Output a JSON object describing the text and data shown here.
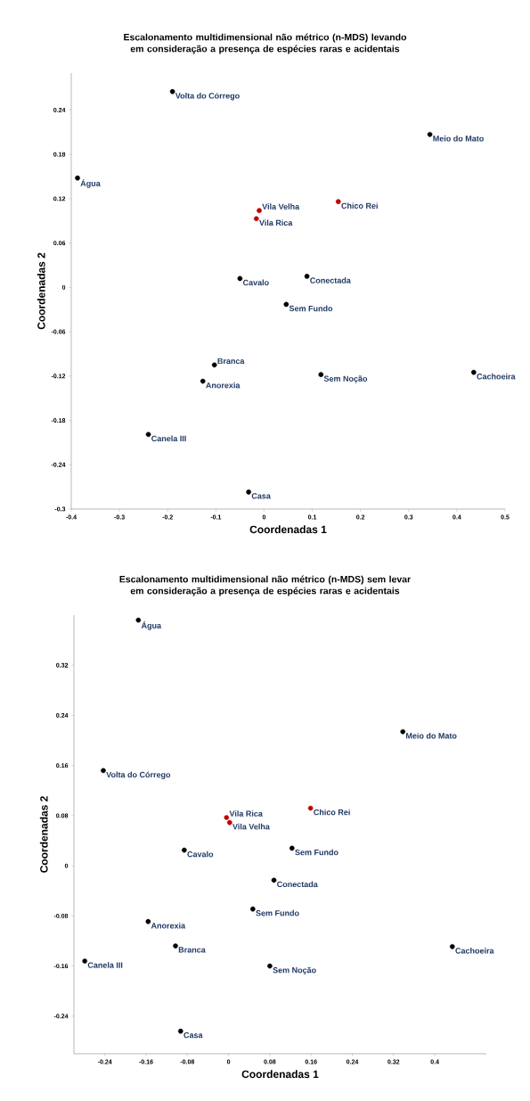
{
  "chart_data": [
    {
      "type": "scatter",
      "title": "Escalonamento multidimensional não métrico (n-MDS) levando em consideração a presença de espécies raras e acidentais",
      "xlabel": "Coordenadas 1",
      "ylabel": "Coordenadas 2",
      "xlim": [
        -0.4,
        0.5
      ],
      "ylim": [
        -0.3,
        0.29
      ],
      "xticks": [
        -0.4,
        -0.3,
        -0.2,
        -0.1,
        0,
        0.1,
        0.2,
        0.3,
        0.4,
        0.5
      ],
      "yticks": [
        -0.3,
        -0.24,
        -0.18,
        -0.12,
        -0.06,
        0,
        0.06,
        0.12,
        0.18,
        0.24
      ],
      "marker": "circle",
      "series": [
        {
          "color": "#000000",
          "x": [
            -0.19,
            0.344,
            -0.387,
            -0.05,
            0.089,
            0.046,
            -0.103,
            -0.127,
            0.118,
            0.435,
            -0.24,
            -0.032
          ],
          "values": [
            0.265,
            0.207,
            0.148,
            0.012,
            0.015,
            -0.023,
            -0.105,
            -0.127,
            -0.118,
            -0.115,
            -0.199,
            -0.277
          ]
        },
        {
          "color": "#c00000",
          "x": [
            -0.01,
            -0.016,
            0.154
          ],
          "values": [
            0.104,
            0.093,
            0.116
          ]
        }
      ],
      "annotations": [
        {
          "text": "Volta do Córrego",
          "x": -0.19,
          "y": 0.265
        },
        {
          "text": "Meio do Mato",
          "x": 0.344,
          "y": 0.207
        },
        {
          "text": "Água",
          "x": -0.387,
          "y": 0.148
        },
        {
          "text": "Cavalo",
          "x": -0.05,
          "y": 0.012
        },
        {
          "text": "Conectada",
          "x": 0.089,
          "y": 0.015
        },
        {
          "text": "Sem Fundo",
          "x": 0.046,
          "y": -0.023
        },
        {
          "text": "Branca",
          "x": -0.103,
          "y": -0.105
        },
        {
          "text": "Anorexia",
          "x": -0.127,
          "y": -0.127
        },
        {
          "text": "Sem Noção",
          "x": 0.118,
          "y": -0.118
        },
        {
          "text": "Cachoeira",
          "x": 0.435,
          "y": -0.115
        },
        {
          "text": "Canela III",
          "x": -0.24,
          "y": -0.199
        },
        {
          "text": "Casa",
          "x": -0.032,
          "y": -0.277
        },
        {
          "text": "Vila Velha",
          "x": -0.01,
          "y": 0.104
        },
        {
          "text": "Vila Rica",
          "x": -0.016,
          "y": 0.093
        },
        {
          "text": "Chico Rei",
          "x": 0.154,
          "y": 0.116
        }
      ]
    },
    {
      "type": "scatter",
      "title": "Escalonamento multidimensional não métrico (n-MDS) sem levar em consideração a presença de espécies raras e acidentais",
      "xlabel": "Coordenadas 1",
      "ylabel": "Coordenadas 2",
      "xlim": [
        -0.3,
        0.5
      ],
      "ylim": [
        -0.3,
        0.4
      ],
      "xticks": [
        -0.24,
        -0.16,
        -0.08,
        0,
        0.08,
        0.16,
        0.24,
        0.32,
        0.4
      ],
      "yticks": [
        -0.24,
        -0.16,
        -0.08,
        0,
        0.08,
        0.16,
        0.24,
        0.32
      ],
      "marker": "circle",
      "series": [
        {
          "color": "#000000",
          "x": [
            -0.175,
            0.338,
            -0.243,
            -0.086,
            0.123,
            0.088,
            0.047,
            -0.156,
            -0.103,
            -0.279,
            0.08,
            0.434,
            -0.093
          ],
          "values": [
            0.392,
            0.214,
            0.152,
            0.025,
            0.028,
            -0.023,
            -0.069,
            -0.089,
            -0.128,
            -0.152,
            -0.16,
            -0.129,
            -0.264
          ]
        },
        {
          "color": "#c00000",
          "x": [
            -0.004,
            0.002,
            0.159
          ],
          "values": [
            0.077,
            0.069,
            0.092
          ]
        }
      ],
      "annotations": [
        {
          "text": "Água",
          "x": -0.175,
          "y": 0.392
        },
        {
          "text": "Meio do Mato",
          "x": 0.338,
          "y": 0.214
        },
        {
          "text": "Volta do Córrego",
          "x": -0.243,
          "y": 0.152
        },
        {
          "text": "Cavalo",
          "x": -0.086,
          "y": 0.025
        },
        {
          "text": "Sem Fundo",
          "x": 0.123,
          "y": 0.028
        },
        {
          "text": "Conectada",
          "x": 0.088,
          "y": -0.023
        },
        {
          "text": "Sem Fundo",
          "x": 0.047,
          "y": -0.069
        },
        {
          "text": "Anorexia",
          "x": -0.156,
          "y": -0.089
        },
        {
          "text": "Branca",
          "x": -0.103,
          "y": -0.128
        },
        {
          "text": "Canela III",
          "x": -0.279,
          "y": -0.152
        },
        {
          "text": "Sem Noção",
          "x": 0.08,
          "y": -0.16
        },
        {
          "text": "Cachoeira",
          "x": 0.434,
          "y": -0.129
        },
        {
          "text": "Casa",
          "x": -0.093,
          "y": -0.264
        },
        {
          "text": "Vila Rica",
          "x": -0.004,
          "y": 0.077
        },
        {
          "text": "Vila Velha",
          "x": 0.002,
          "y": 0.069
        },
        {
          "text": "Chico Rei",
          "x": 0.159,
          "y": 0.092
        }
      ]
    }
  ]
}
